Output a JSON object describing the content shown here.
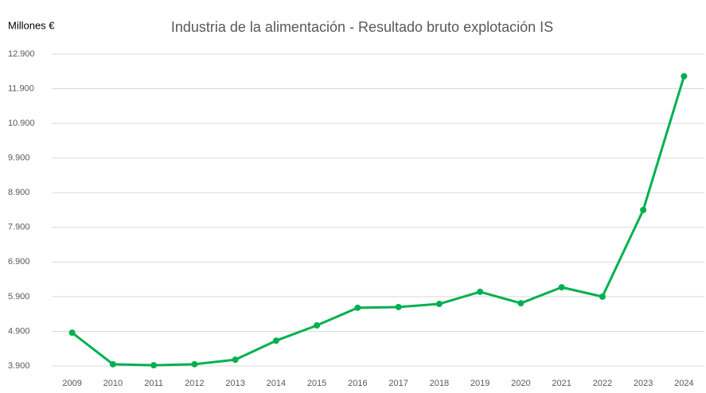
{
  "chart_data": {
    "type": "line",
    "title": "Industria de la alimentación - Resultado bruto explotación IS",
    "y_label": "Millones €",
    "categories": [
      "2009",
      "2010",
      "2011",
      "2012",
      "2013",
      "2014",
      "2015",
      "2016",
      "2017",
      "2018",
      "2019",
      "2020",
      "2021",
      "2022",
      "2023",
      "2024"
    ],
    "series": [
      {
        "name": "Resultado bruto explotación IS",
        "color": "#00b050",
        "values": [
          4860,
          3950,
          3920,
          3950,
          4080,
          4630,
          5070,
          5580,
          5600,
          5690,
          6040,
          5710,
          6170,
          5900,
          8400,
          12260
        ]
      }
    ],
    "ylim": [
      3900,
      12900
    ],
    "yticks": [
      {
        "value": 3900,
        "label": "3.900"
      },
      {
        "value": 4900,
        "label": "4.900"
      },
      {
        "value": 5900,
        "label": "5.900"
      },
      {
        "value": 6900,
        "label": "6.900"
      },
      {
        "value": 7900,
        "label": "7.900"
      },
      {
        "value": 8900,
        "label": "8.900"
      },
      {
        "value": 9900,
        "label": "9.900"
      },
      {
        "value": 10900,
        "label": "10.900"
      },
      {
        "value": 11900,
        "label": "11.900"
      },
      {
        "value": 12900,
        "label": "12.900"
      }
    ],
    "grid": true
  }
}
